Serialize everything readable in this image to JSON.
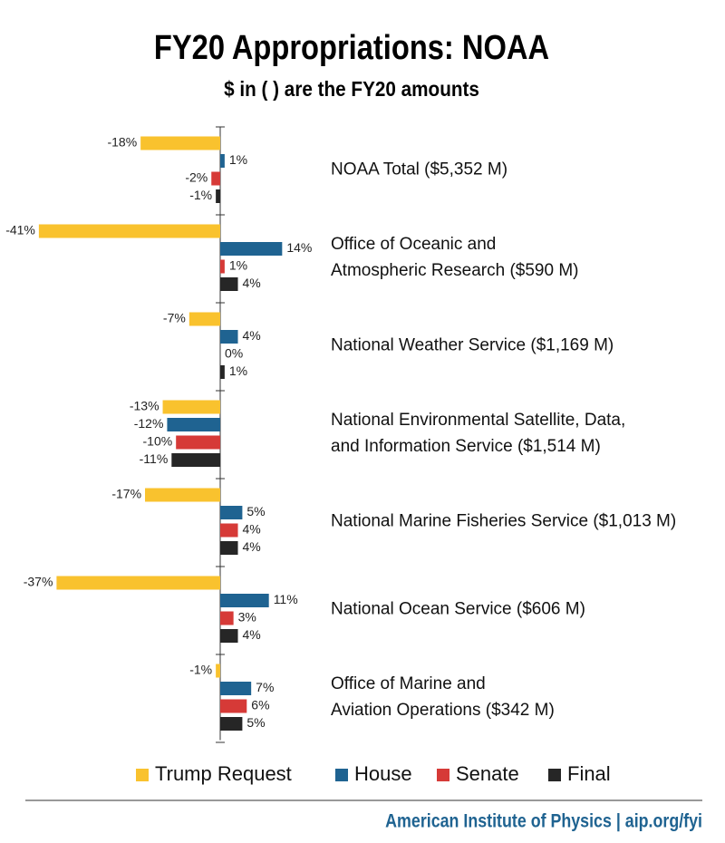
{
  "chart_data": {
    "type": "hbar",
    "title": "FY20 Appropriations: NOAA",
    "subtitle": "$ in ( ) are the FY20 amounts",
    "categories": [
      "NOAA Total ($5,352 M)",
      "Office of Oceanic and\nAtmospheric Research ($590 M)",
      "National Weather Service ($1,169 M)",
      "National Environmental Satellite, Data,\nand Information Service ($1,514 M)",
      "National Marine Fisheries Service ($1,013 M)",
      "National Ocean Service ($606 M)",
      "Office of Marine and\nAviation Operations ($342 M)"
    ],
    "series": [
      {
        "name": "Trump Request",
        "color": "#f9c22e",
        "values": [
          -18,
          -41,
          -7,
          -13,
          -17,
          -37,
          -1
        ],
        "value_labels": [
          "-18%",
          "-41%",
          "-7%",
          "-13%",
          "-17%",
          "-37%",
          "-1%"
        ]
      },
      {
        "name": "House",
        "color": "#1f6391",
        "values": [
          1,
          14,
          4,
          -12,
          5,
          11,
          7
        ],
        "value_labels": [
          "1%",
          "14%",
          "4%",
          "-12%",
          "5%",
          "11%",
          "7%"
        ]
      },
      {
        "name": "Senate",
        "color": "#d63a37",
        "values": [
          -2,
          1,
          0,
          -10,
          4,
          3,
          6
        ],
        "value_labels": [
          "-2%",
          "1%",
          "0%",
          "-10%",
          "4%",
          "3%",
          "6%"
        ]
      },
      {
        "name": "Final",
        "color": "#262626",
        "values": [
          -1,
          4,
          1,
          -11,
          4,
          4,
          5
        ],
        "value_labels": [
          "-1%",
          "4%",
          "1%",
          "-11%",
          "4%",
          "4%",
          "5%"
        ]
      }
    ],
    "xlim": [
      -42,
      42
    ],
    "legend": "bottom",
    "footer": "American Institute of Physics | aip.org/fyi"
  }
}
